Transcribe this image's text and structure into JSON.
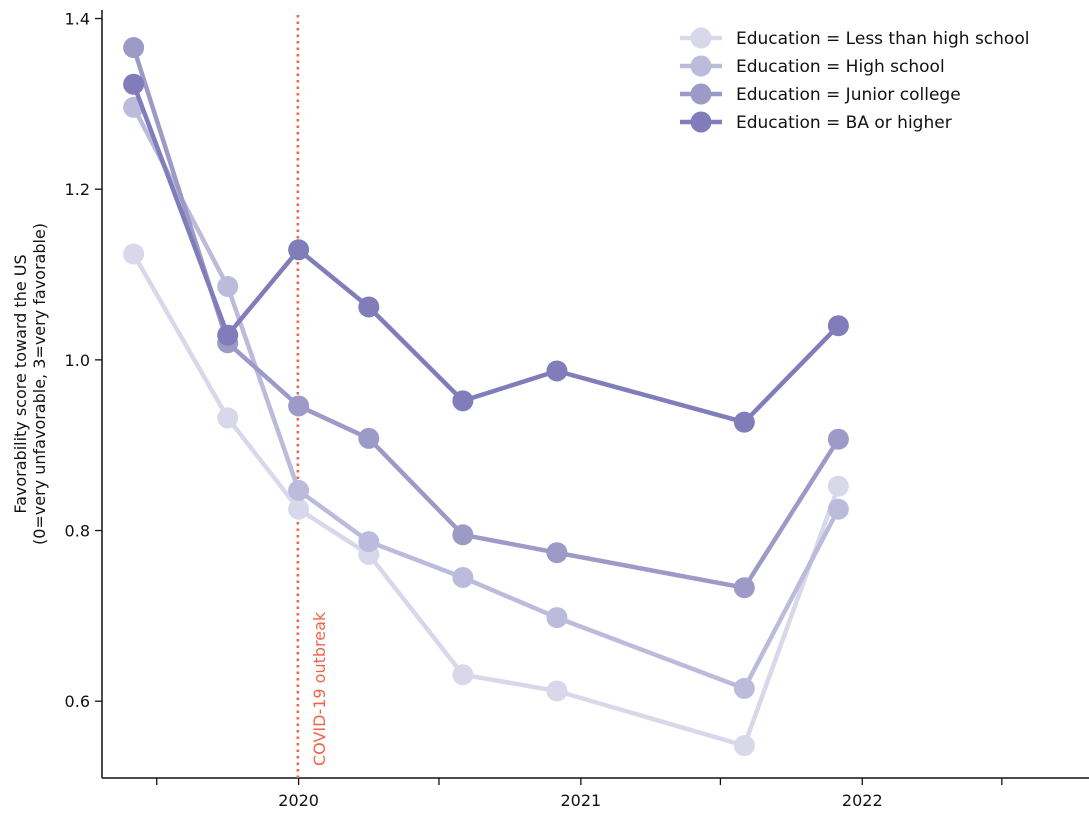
{
  "chart_data": {
    "type": "line",
    "title": "",
    "xlabel": "",
    "ylabel": "Favorability score toward the US",
    "ylabel_line2": "(0=very unfavorable, 3=very favorable)",
    "x_ticks": [
      {
        "value": "2019-07-01",
        "label": ""
      },
      {
        "value": "2020-01-01",
        "label": "2020"
      },
      {
        "value": "2020-07-01",
        "label": ""
      },
      {
        "value": "2021-01-01",
        "label": "2021"
      },
      {
        "value": "2021-07-01",
        "label": ""
      },
      {
        "value": "2022-01-01",
        "label": "2022"
      },
      {
        "value": "2022-07-01",
        "label": ""
      }
    ],
    "xlim": [
      "2019-04-21",
      "2022-09-17"
    ],
    "y_ticks": [
      0.6,
      0.8,
      1.0,
      1.2,
      1.4
    ],
    "y_tick_labels": [
      "0.6",
      "0.8",
      "1.0",
      "1.2",
      "1.4"
    ],
    "ylim": [
      0.51,
      1.41
    ],
    "grid": false,
    "legend_position": "top-right",
    "x": [
      "2019-06-01",
      "2019-10-01",
      "2020-01-01",
      "2020-04-01",
      "2020-08-01",
      "2020-12-01",
      "2021-08-01",
      "2021-12-01"
    ],
    "series": [
      {
        "name": "Education = Less than high school",
        "color": "#d9d7ea",
        "values": [
          1.124,
          0.932,
          0.825,
          0.772,
          0.631,
          0.612,
          0.548,
          0.852
        ]
      },
      {
        "name": "Education = High school",
        "color": "#bcbbdc",
        "values": [
          1.296,
          1.086,
          0.847,
          0.787,
          0.745,
          0.698,
          0.615,
          0.825
        ]
      },
      {
        "name": "Education = Junior college",
        "color": "#9e9ac8",
        "values": [
          1.366,
          1.02,
          0.946,
          0.908,
          0.795,
          0.774,
          0.733,
          0.907
        ]
      },
      {
        "name": "Education = BA or higher",
        "color": "#807dba",
        "values": [
          1.323,
          1.029,
          1.129,
          1.062,
          0.952,
          0.987,
          0.927,
          1.04
        ]
      }
    ],
    "annotations": [
      {
        "text": "COVID-19 outbreak",
        "x": "2019-12-31",
        "style": "dotted vertical line",
        "color": "#f16447"
      }
    ]
  }
}
